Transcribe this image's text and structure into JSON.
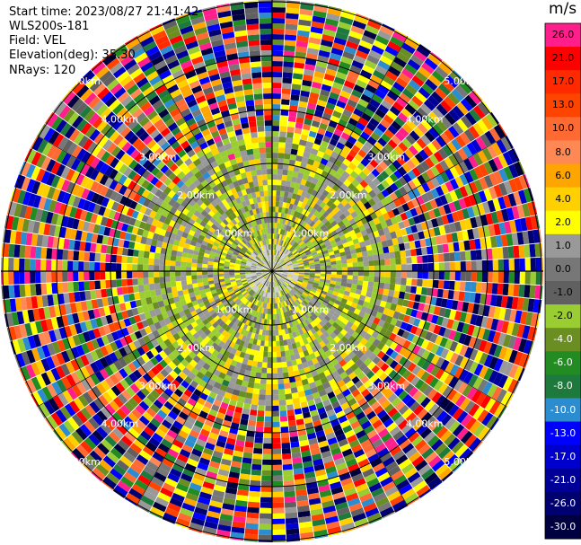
{
  "info": {
    "start_time": "Start time: 2023/08/27 21:41:42",
    "instrument": "WLS200s-181",
    "field": "Field: VEL",
    "elevation": "Elevation(deg): 35.30",
    "nrays": "NRays: 120"
  },
  "colorbar": {
    "unit": "m/s",
    "ticks": [
      "26.0",
      "21.0",
      "17.0",
      "13.0",
      "10.0",
      "8.0",
      "6.0",
      "4.0",
      "2.0",
      "1.0",
      "0.0",
      "-1.0",
      "-2.0",
      "-4.0",
      "-6.0",
      "-8.0",
      "-10.0",
      "-13.0",
      "-17.0",
      "-21.0",
      "-26.0",
      "-30.0"
    ],
    "colors": [
      "#ff1e8c",
      "#ff0000",
      "#ff2a00",
      "#ff4400",
      "#ff6a33",
      "#ff8855",
      "#ffa500",
      "#ffd000",
      "#ffff00",
      "#999999",
      "#777777",
      "#606060",
      "#9acd32",
      "#6b8e23",
      "#228b22",
      "#1e7a3c",
      "#2b8ccf",
      "#0000ff",
      "#0000cc",
      "#000099",
      "#000070",
      "#000040"
    ],
    "light_text_from": 13
  },
  "chart_data": {
    "type": "heatmap",
    "projection": "polar PPI",
    "field": "VEL",
    "units": "m/s",
    "nrays": 120,
    "range_rings_km": [
      1.0,
      2.0,
      3.0,
      4.0,
      5.0
    ],
    "ring_labels": [
      "1.00km",
      "1.00km",
      "1.00km",
      "1.00km",
      "2.00km",
      "2.00km",
      "2.00km",
      "2.00km",
      "3.00km",
      "3.00km",
      "3.00km",
      "3.00km",
      "4.00km",
      "4.00km",
      "4.00km",
      "4.00km",
      "5.00km",
      "5.00km",
      "5.00km",
      "5.00km"
    ],
    "max_range_km": 5.0,
    "vmin": -30.0,
    "vmax": 26.0,
    "inner_region_description": "near-zero/weak velocities (grey, yellow, green) within ~2.5 km",
    "outer_region_description": "noisy full-range colors beyond ~2.5 km"
  }
}
